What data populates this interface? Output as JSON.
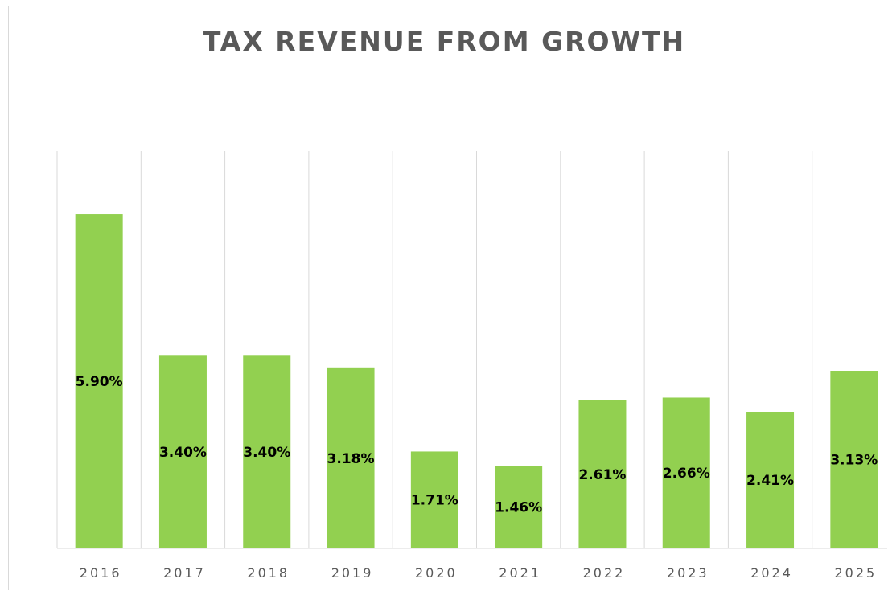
{
  "chart_data": {
    "type": "bar",
    "title": "TAX REVENUE FROM GROWTH",
    "xlabel": "",
    "ylabel": "",
    "categories": [
      "2016",
      "2017",
      "2018",
      "2019",
      "2020",
      "2021",
      "2022",
      "2023",
      "2024",
      "2025"
    ],
    "values": [
      5.9,
      3.4,
      3.4,
      3.18,
      1.71,
      1.46,
      2.61,
      2.66,
      2.41,
      3.13
    ],
    "data_labels": [
      "5.90%",
      "3.40%",
      "3.40%",
      "3.18%",
      "1.71%",
      "1.46%",
      "2.61%",
      "2.66%",
      "2.41%",
      "3.13%"
    ],
    "ylim": [
      0,
      7
    ],
    "grid": "vertical",
    "legend": "none",
    "bar_color": "#92d050",
    "grid_color": "#d9d9d9",
    "label_position": "center"
  }
}
